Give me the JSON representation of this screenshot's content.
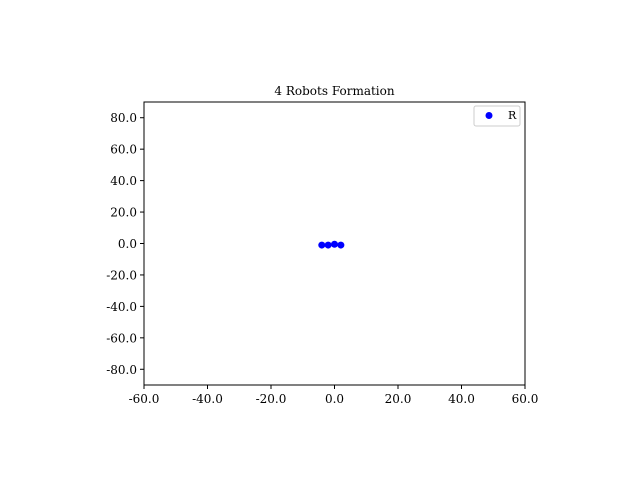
{
  "chart_data": {
    "type": "scatter",
    "title": "4 Robots Formation",
    "xlabel": "",
    "ylabel": "",
    "xlim": [
      -60,
      60
    ],
    "ylim": [
      -90,
      90
    ],
    "xticks": [
      -60,
      -40,
      -20,
      0,
      20,
      40,
      60
    ],
    "yticks": [
      -80,
      -60,
      -40,
      -20,
      0,
      20,
      40,
      60,
      80
    ],
    "xtick_labels": [
      "-60.0",
      "-40.0",
      "-20.0",
      "0.0",
      "20.0",
      "40.0",
      "60.0"
    ],
    "ytick_labels": [
      "-80.0",
      "-60.0",
      "-40.0",
      "-20.0",
      "0.0",
      "20.0",
      "40.0",
      "60.0",
      "80.0"
    ],
    "grid": false,
    "legend": {
      "position": "top-right",
      "entries": [
        "R"
      ]
    },
    "series": [
      {
        "name": "R",
        "color": "#0000ff",
        "marker": "circle",
        "points": [
          {
            "x": -4.0,
            "y": -1.0
          },
          {
            "x": -2.0,
            "y": -1.0
          },
          {
            "x": 0.0,
            "y": -0.5
          },
          {
            "x": 2.0,
            "y": -1.0
          }
        ]
      }
    ]
  }
}
